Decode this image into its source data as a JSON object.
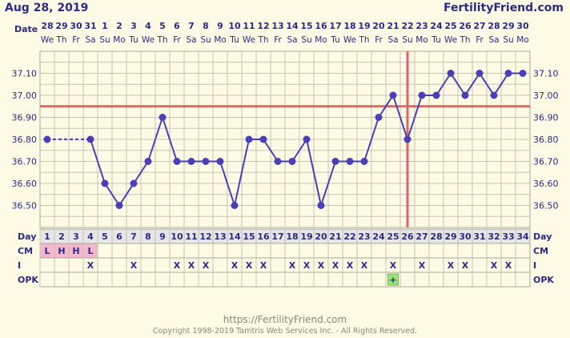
{
  "header": {
    "date": "Aug 28, 2019",
    "brand": "FertilityFriend.com",
    "date_row_label": "Date"
  },
  "footer": {
    "url": "https://FertilityFriend.com",
    "copyright": "Copyright 1998-2019 Tamtris Web Services Inc. - All Rights Reserved."
  },
  "colors": {
    "line": "#4a3fb5",
    "point": "#4a3fb5",
    "coverline": "#e06666",
    "ovulation": "#e06666",
    "cm_fill": "#f4b8cc",
    "opk_positive": "#9be07b"
  },
  "chart_data": {
    "type": "line",
    "y_ticks": [
      "37.10",
      "37.00",
      "36.90",
      "36.80",
      "36.70",
      "36.60",
      "36.50"
    ],
    "ylim": [
      36.4,
      37.2
    ],
    "dates": [
      "28",
      "29",
      "30",
      "31",
      "1",
      "2",
      "3",
      "4",
      "5",
      "6",
      "7",
      "8",
      "9",
      "10",
      "11",
      "12",
      "13",
      "14",
      "15",
      "16",
      "17",
      "18",
      "19",
      "20",
      "21",
      "22",
      "23",
      "24",
      "25",
      "26",
      "27",
      "28",
      "29",
      "30"
    ],
    "weekdays": [
      "We",
      "Th",
      "Fr",
      "Sa",
      "Su",
      "Mo",
      "Tu",
      "We",
      "Th",
      "Fr",
      "Sa",
      "Su",
      "Mo",
      "Tu",
      "We",
      "Th",
      "Fr",
      "Sa",
      "Su",
      "Mo",
      "Tu",
      "We",
      "Th",
      "Fr",
      "Sa",
      "Su",
      "Mo",
      "Tu",
      "We",
      "Th",
      "Fr",
      "Sa",
      "Su",
      "Mo"
    ],
    "days": [
      "1",
      "2",
      "3",
      "4",
      "5",
      "6",
      "7",
      "8",
      "9",
      "10",
      "11",
      "12",
      "13",
      "14",
      "15",
      "16",
      "17",
      "18",
      "19",
      "20",
      "21",
      "22",
      "23",
      "24",
      "25",
      "26",
      "27",
      "28",
      "29",
      "30",
      "31",
      "32",
      "33",
      "34"
    ],
    "temps": [
      36.8,
      null,
      null,
      36.8,
      36.6,
      36.5,
      36.6,
      36.7,
      36.9,
      36.7,
      36.7,
      36.7,
      36.7,
      36.5,
      36.8,
      36.8,
      36.7,
      36.7,
      36.8,
      36.5,
      36.7,
      36.7,
      36.7,
      36.9,
      37.0,
      36.8,
      37.0,
      37.0,
      37.1,
      37.0,
      37.1,
      37.0,
      37.1,
      37.1
    ],
    "coverline": 36.95,
    "ovulation_day": 26,
    "row_labels": {
      "day": "Day",
      "cm": "CM",
      "i": "I",
      "opk": "OPK"
    },
    "cm": [
      "L",
      "H",
      "H",
      "L",
      "",
      "",
      "",
      "",
      "",
      "",
      "",
      "",
      "",
      "",
      "",
      "",
      "",
      "",
      "",
      "",
      "",
      "",
      "",
      "",
      "",
      "",
      "",
      "",
      "",
      "",
      "",
      "",
      "",
      ""
    ],
    "intercourse": [
      "",
      "",
      "",
      "X",
      "",
      "",
      "X",
      "",
      "",
      "X",
      "X",
      "X",
      "",
      "X",
      "X",
      "X",
      "",
      "X",
      "X",
      "X",
      "X",
      "X",
      "X",
      "",
      "X",
      "",
      "X",
      "",
      "X",
      "X",
      "",
      "X",
      "X",
      ""
    ],
    "opk": [
      "",
      "",
      "",
      "",
      "",
      "",
      "",
      "",
      "",
      "",
      "",
      "",
      "",
      "",
      "",
      "",
      "",
      "",
      "",
      "",
      "",
      "",
      "",
      "",
      "+",
      "",
      "",
      "",
      "",
      "",
      "",
      "",
      "",
      ""
    ]
  }
}
